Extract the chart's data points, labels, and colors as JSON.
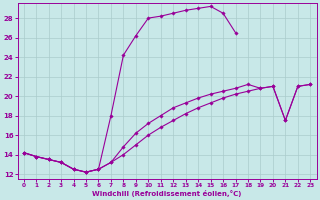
{
  "xlabel": "Windchill (Refroidissement éolien,°C)",
  "bg_color": "#c8e8e8",
  "line_color": "#990099",
  "grid_color": "#aacccc",
  "xlim": [
    -0.5,
    23.5
  ],
  "ylim": [
    11.5,
    29.5
  ],
  "xticks": [
    0,
    1,
    2,
    3,
    4,
    5,
    6,
    7,
    8,
    9,
    10,
    11,
    12,
    13,
    14,
    15,
    16,
    17,
    18,
    19,
    20,
    21,
    22,
    23
  ],
  "yticks": [
    12,
    14,
    16,
    18,
    20,
    22,
    24,
    26,
    28
  ],
  "curve1_x": [
    0,
    1,
    2,
    3,
    4,
    5,
    6,
    7,
    8,
    9,
    10,
    11,
    12,
    13,
    14,
    15,
    16,
    17
  ],
  "curve1_y": [
    14.2,
    13.8,
    13.5,
    13.2,
    12.5,
    12.2,
    12.5,
    18.0,
    24.2,
    26.2,
    28.0,
    28.2,
    28.5,
    28.8,
    29.0,
    29.2,
    28.5,
    26.5
  ],
  "curve2_x": [
    0,
    1,
    2,
    3,
    4,
    5,
    6,
    7,
    8,
    9,
    10,
    11,
    12,
    13,
    14,
    15,
    16,
    17,
    18,
    19,
    20,
    21,
    22,
    23
  ],
  "curve2_y": [
    14.2,
    13.8,
    13.5,
    13.2,
    12.5,
    12.2,
    12.5,
    13.2,
    14.0,
    15.0,
    16.0,
    16.8,
    17.5,
    18.2,
    18.8,
    19.3,
    19.8,
    20.2,
    20.5,
    20.8,
    21.0,
    17.5,
    21.0,
    21.2
  ],
  "curve3_x": [
    0,
    1,
    2,
    3,
    4,
    5,
    6,
    7,
    8,
    9,
    10,
    11,
    12,
    13,
    14,
    15,
    16,
    17,
    18,
    19,
    20,
    21,
    22,
    23
  ],
  "curve3_y": [
    14.2,
    13.8,
    13.5,
    13.2,
    12.5,
    12.2,
    12.5,
    13.2,
    14.8,
    16.2,
    17.2,
    18.0,
    18.8,
    19.3,
    19.8,
    20.2,
    20.5,
    20.8,
    21.2,
    20.8,
    21.0,
    17.5,
    21.0,
    21.2
  ]
}
